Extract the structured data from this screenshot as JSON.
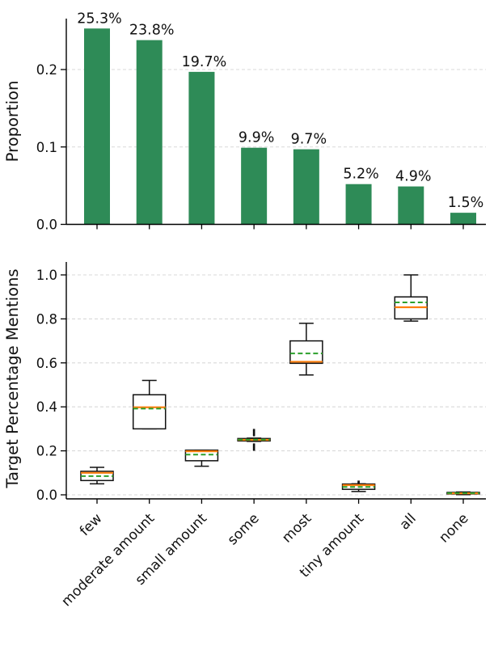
{
  "figure": {
    "background": "#ffffff",
    "colors": {
      "bar_green": "#2e8b57",
      "median_orange": "#ff7f0e",
      "mean_green": "#2ca02c",
      "box_edge": "#111111",
      "grid": "#d9d9d9",
      "axis": "#000000"
    }
  },
  "chart_data": [
    {
      "type": "bar",
      "title": "",
      "xlabel": "",
      "ylabel": "Proportion",
      "categories": [
        "few",
        "moderate amount",
        "small amount",
        "some",
        "most",
        "tiny amount",
        "all",
        "none"
      ],
      "values": [
        0.253,
        0.238,
        0.197,
        0.099,
        0.097,
        0.052,
        0.049,
        0.015
      ],
      "bar_labels": [
        "25.3%",
        "23.8%",
        "19.7%",
        "9.9%",
        "9.7%",
        "5.2%",
        "4.9%",
        "1.5%"
      ],
      "yticks": [
        "0.0",
        "0.1",
        "0.2"
      ],
      "ytick_values": [
        0.0,
        0.1,
        0.2
      ],
      "ylim": [
        0,
        0.266
      ],
      "grid": "dashed-horizontal",
      "legend": false,
      "x_tick_labels_visible": false,
      "bar_color": "#2e8b57"
    },
    {
      "type": "box",
      "title": "",
      "xlabel": "",
      "ylabel": "Target Percentage Mentions",
      "categories": [
        "few",
        "moderate amount",
        "small amount",
        "some",
        "most",
        "tiny amount",
        "all",
        "none"
      ],
      "yticks": [
        "0.0",
        "0.2",
        "0.4",
        "0.6",
        "0.8",
        "1.0"
      ],
      "ytick_values": [
        0.0,
        0.2,
        0.4,
        0.6,
        0.8,
        1.0
      ],
      "ylim": [
        -0.02,
        1.05
      ],
      "grid": "dashed-horizontal",
      "legend": false,
      "median_color": "#ff7f0e",
      "mean_color": "#2ca02c",
      "mean_line_style": "dashed",
      "series": [
        {
          "name": "few",
          "whislo": 0.05,
          "q1": 0.065,
          "med": 0.1,
          "mean": 0.085,
          "q3": 0.107,
          "whishi": 0.125,
          "fliers": []
        },
        {
          "name": "moderate amount",
          "whislo": 0.3,
          "q1": 0.3,
          "med": 0.398,
          "mean": 0.392,
          "q3": 0.455,
          "whishi": 0.52,
          "fliers": []
        },
        {
          "name": "small amount",
          "whislo": 0.13,
          "q1": 0.155,
          "med": 0.198,
          "mean": 0.183,
          "q3": 0.203,
          "whishi": 0.203,
          "fliers": []
        },
        {
          "name": "some",
          "whislo": 0.243,
          "q1": 0.245,
          "med": 0.25,
          "mean": 0.251,
          "q3": 0.256,
          "whishi": 0.258,
          "fliers": [
            0.205,
            0.213,
            0.221,
            0.229,
            0.271,
            0.279,
            0.287,
            0.295
          ]
        },
        {
          "name": "most",
          "whislo": 0.545,
          "q1": 0.598,
          "med": 0.605,
          "mean": 0.643,
          "q3": 0.7,
          "whishi": 0.78,
          "fliers": []
        },
        {
          "name": "tiny amount",
          "whislo": 0.015,
          "q1": 0.025,
          "med": 0.044,
          "mean": 0.036,
          "q3": 0.049,
          "whishi": 0.05,
          "fliers": [
            0.055,
            0.06
          ]
        },
        {
          "name": "all",
          "whislo": 0.79,
          "q1": 0.8,
          "med": 0.853,
          "mean": 0.875,
          "q3": 0.9,
          "whishi": 1.0,
          "fliers": []
        },
        {
          "name": "none",
          "whislo": 0.001,
          "q1": 0.004,
          "med": 0.007,
          "mean": 0.008,
          "q3": 0.011,
          "whishi": 0.013,
          "fliers": []
        }
      ]
    }
  ]
}
